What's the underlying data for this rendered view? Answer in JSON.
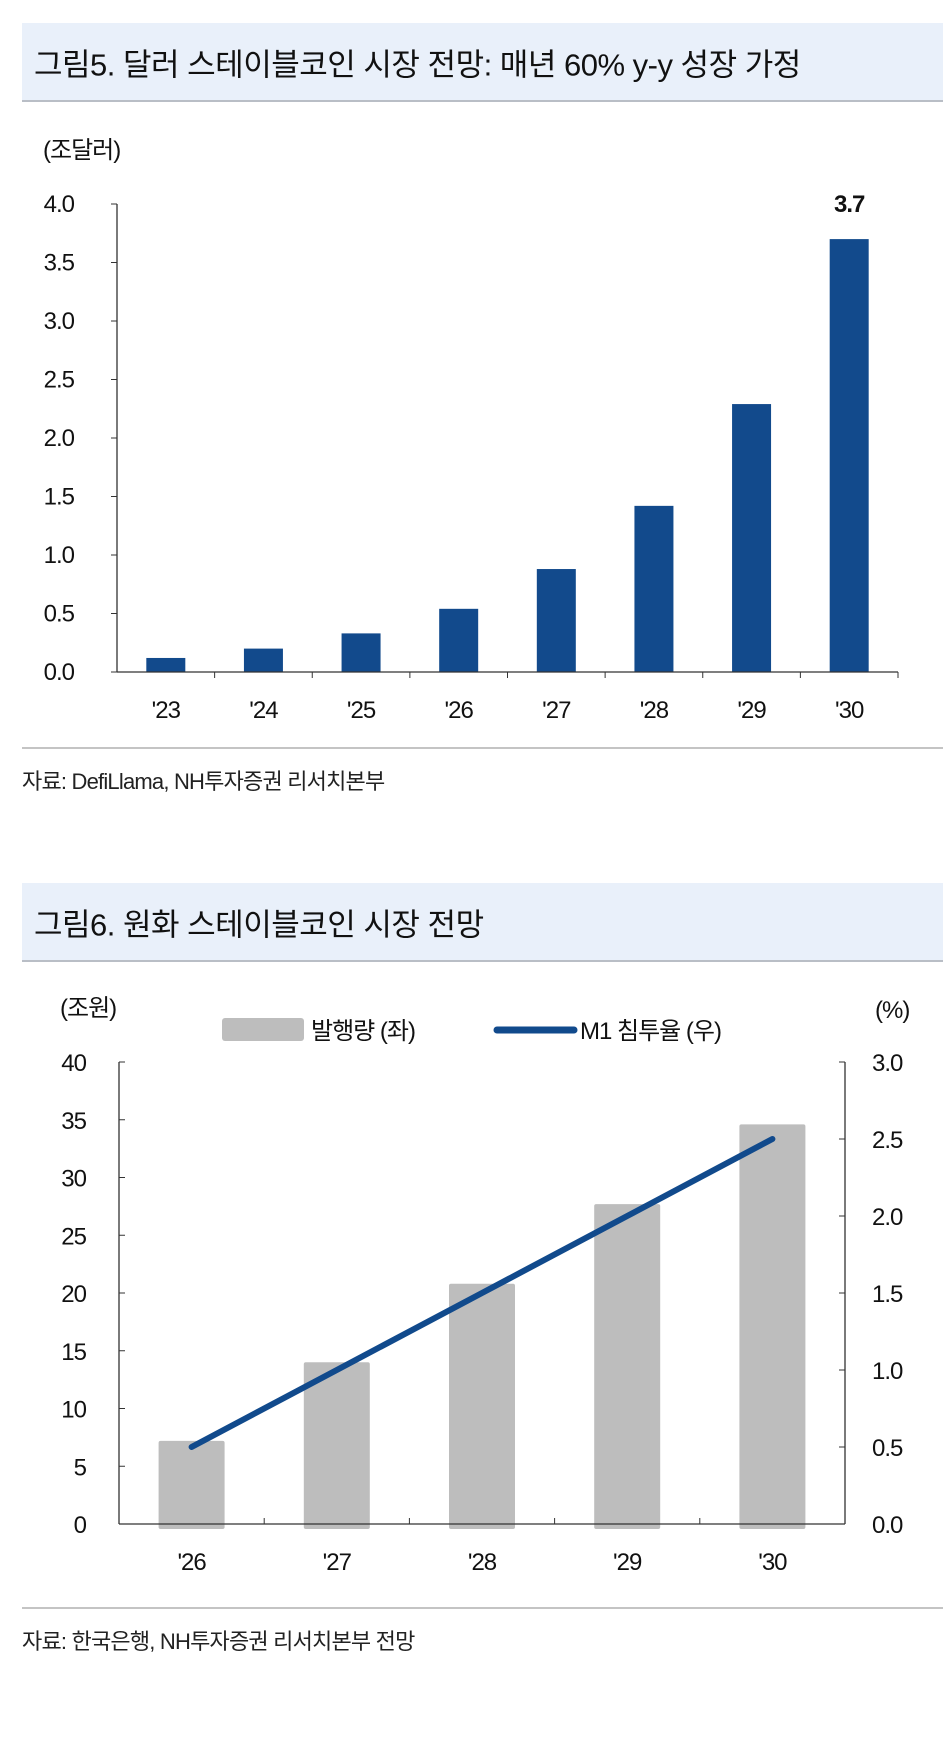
{
  "figure5": {
    "title": "그림5. 달러 스테이블코인 시장 전망: 매년 60% y-y 성장 가정",
    "source": "자료: DefiLlama, NH투자증권 리서치본부"
  },
  "figure6": {
    "title": "그림6. 원화 스테이블코인 시장 전망",
    "source": "자료: 한국은행, NH투자증권 리서치본부 전망"
  },
  "chart_data": [
    {
      "type": "bar",
      "title": "그림5. 달러 스테이블코인 시장 전망: 매년 60% y-y 성장 가정",
      "ylabel": "(조달러)",
      "categories": [
        "'23",
        "'24",
        "'25",
        "'26",
        "'27",
        "'28",
        "'29",
        "'30"
      ],
      "values": [
        0.12,
        0.2,
        0.33,
        0.54,
        0.88,
        1.42,
        2.29,
        3.7
      ],
      "data_labels": {
        "'30": "3.7"
      },
      "ylim": [
        0,
        4.0
      ],
      "yticks": [
        "0.0",
        "0.5",
        "1.0",
        "1.5",
        "2.0",
        "2.5",
        "3.0",
        "3.5",
        "4.0"
      ],
      "grid": false,
      "colors": {
        "bar": "#124a8c"
      }
    },
    {
      "type": "bar+line",
      "title": "그림6. 원화 스테이블코인 시장 전망",
      "ylabel_left": "(조원)",
      "ylabel_right": "(%)",
      "categories": [
        "'26",
        "'27",
        "'28",
        "'29",
        "'30"
      ],
      "series": [
        {
          "name": "발행량 (좌)",
          "type": "bar",
          "axis": "left",
          "values": [
            7.2,
            14.0,
            20.8,
            27.7,
            34.6
          ],
          "color": "#bdbdbd"
        },
        {
          "name": "M1 침투율 (우)",
          "type": "line",
          "axis": "right",
          "values": [
            0.5,
            1.0,
            1.5,
            2.0,
            2.5
          ],
          "color": "#114a8c"
        }
      ],
      "ylim_left": [
        0,
        40
      ],
      "ylim_right": [
        0,
        3.0
      ],
      "yticks_left": [
        "0",
        "5",
        "10",
        "15",
        "20",
        "25",
        "30",
        "35",
        "40"
      ],
      "yticks_right": [
        "0.0",
        "0.5",
        "1.0",
        "1.5",
        "2.0",
        "2.5",
        "3.0"
      ],
      "legend": "top",
      "grid": false
    }
  ]
}
